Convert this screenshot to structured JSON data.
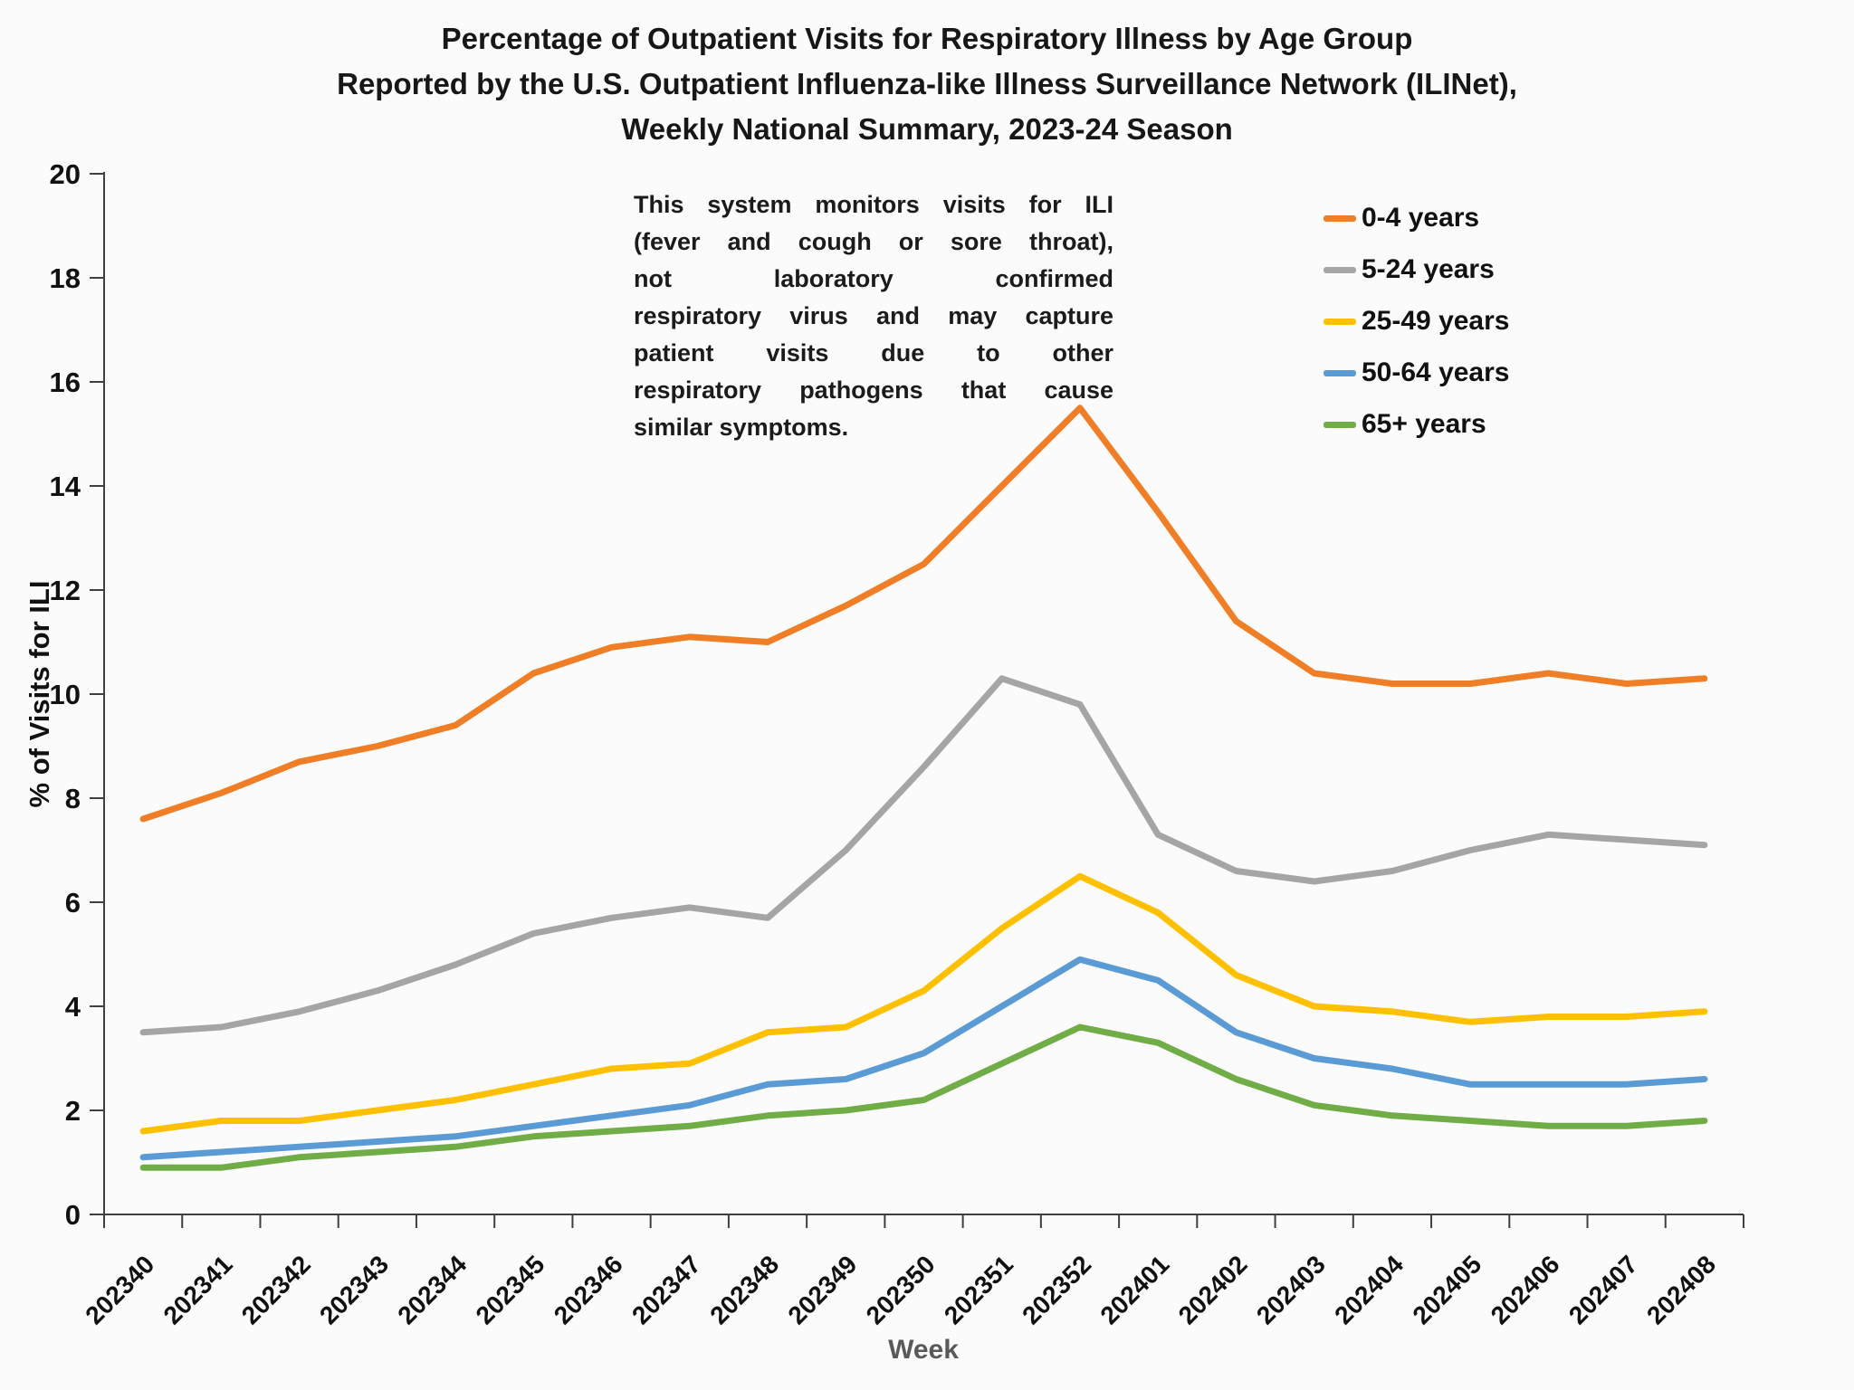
{
  "title": {
    "line1": "Percentage of Outpatient Visits for Respiratory Illness by Age Group",
    "line2": "Reported by the U.S. Outpatient Influenza-like Illness Surveillance Network (ILINet),",
    "line3": "Weekly National Summary, 2023-24 Season"
  },
  "annotation": {
    "lines": [
      "This system monitors visits for ILI",
      "(fever and cough or sore throat),",
      "not laboratory confirmed",
      "respiratory virus and may capture",
      "patient visits due to other",
      "respiratory pathogens that cause",
      "similar symptoms."
    ]
  },
  "axes": {
    "x_title": "Week",
    "y_title": "% of Visits for ILI"
  },
  "colors": {
    "axis": "#3f3f3f",
    "tick_label": "#111111",
    "x_axis_title": "#595959",
    "title_text": "#171717"
  },
  "chart_data": {
    "type": "line",
    "title": "Percentage of Outpatient Visits for Respiratory Illness by Age Group Reported by the U.S. Outpatient Influenza-like Illness Surveillance Network (ILINet), Weekly National Summary, 2023-24 Season",
    "xlabel": "Week",
    "ylabel": "% of Visits for ILI",
    "ylim": [
      0,
      20
    ],
    "ytick_step": 2,
    "grid": false,
    "legend_position": "top-right",
    "categories": [
      "202340",
      "202341",
      "202342",
      "202343",
      "202344",
      "202345",
      "202346",
      "202347",
      "202348",
      "202349",
      "202350",
      "202351",
      "202352",
      "202401",
      "202402",
      "202403",
      "202404",
      "202405",
      "202406",
      "202407",
      "202408"
    ],
    "series": [
      {
        "name": "0-4 years",
        "color": "#F07E26",
        "values": [
          7.6,
          8.1,
          8.7,
          9.0,
          9.4,
          10.4,
          10.9,
          11.1,
          11.0,
          11.7,
          12.5,
          14.0,
          15.5,
          13.5,
          11.4,
          10.4,
          10.2,
          10.2,
          10.4,
          10.2,
          10.3
        ]
      },
      {
        "name": "5-24 years",
        "color": "#A5A5A5",
        "values": [
          3.5,
          3.6,
          3.9,
          4.3,
          4.8,
          5.4,
          5.7,
          5.9,
          5.7,
          7.0,
          8.6,
          10.3,
          9.8,
          7.3,
          6.6,
          6.4,
          6.6,
          7.0,
          7.3,
          7.2,
          7.1
        ]
      },
      {
        "name": "25-49 years",
        "color": "#FFC000",
        "values": [
          1.6,
          1.8,
          1.8,
          2.0,
          2.2,
          2.5,
          2.8,
          2.9,
          3.5,
          3.6,
          4.3,
          5.5,
          6.5,
          5.8,
          4.6,
          4.0,
          3.9,
          3.7,
          3.8,
          3.8,
          3.9
        ]
      },
      {
        "name": "50-64 years",
        "color": "#5B9BD5",
        "values": [
          1.1,
          1.2,
          1.3,
          1.4,
          1.5,
          1.7,
          1.9,
          2.1,
          2.5,
          2.6,
          3.1,
          4.0,
          4.9,
          4.5,
          3.5,
          3.0,
          2.8,
          2.5,
          2.5,
          2.5,
          2.6
        ]
      },
      {
        "name": "65+ years",
        "color": "#70AD47",
        "values": [
          0.9,
          0.9,
          1.1,
          1.2,
          1.3,
          1.5,
          1.6,
          1.7,
          1.9,
          2.0,
          2.2,
          2.9,
          3.6,
          3.3,
          2.6,
          2.1,
          1.9,
          1.8,
          1.7,
          1.7,
          1.8
        ]
      }
    ]
  }
}
